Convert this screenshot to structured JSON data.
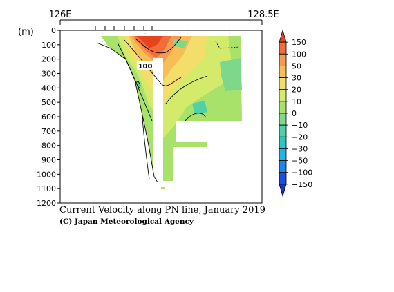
{
  "chart_data": {
    "type": "heatmap",
    "title": "Current Velocity along PN line, January 2019",
    "credit": "(C) Japan Meteorological Agency",
    "x_axis": {
      "range": [
        "126E",
        "128.5E"
      ],
      "tick_labels": [
        "126E",
        "128.5E"
      ],
      "position": "top"
    },
    "y_axis": {
      "unit_label": "(m)",
      "range": [
        0,
        1200
      ],
      "inverted": true,
      "tick_labels": [
        "0",
        "100",
        "200",
        "300",
        "400",
        "500",
        "600",
        "700",
        "800",
        "900",
        "1000",
        "1100",
        "1200"
      ]
    },
    "grid": true,
    "contour_label": "100",
    "colorbar": {
      "labels": [
        "150",
        "100",
        "50",
        "30",
        "20",
        "10",
        "0",
        "−10",
        "−20",
        "−30",
        "−50",
        "−100",
        "−150"
      ],
      "colors": [
        "#e8431c",
        "#f26d3a",
        "#f59a4e",
        "#f6bf55",
        "#f3dd6b",
        "#d4ea6a",
        "#a8e26a",
        "#7ed88c",
        "#50d0a8",
        "#2ec6c2",
        "#22b4e6",
        "#1a86f0",
        "#1a4fe0",
        "#1238c8"
      ]
    }
  }
}
